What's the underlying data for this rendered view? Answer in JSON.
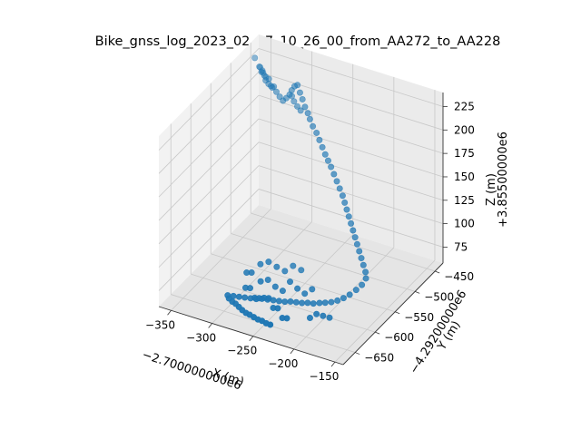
{
  "chart_data": {
    "type": "scatter",
    "projection": "3d",
    "title": "Bike_gnss_log_2023_02_07_10_26_00_from_AA272_to_AA228",
    "xlabel": "X (m)",
    "ylabel": "Y (m)",
    "zlabel": "Z (m)",
    "x_offset_label": "−2.700000000e6",
    "y_offset_label": "−4.29200000e6",
    "z_offset_label": "+3.85500000e6",
    "x_ticks": [
      "−350",
      "−300",
      "−250",
      "−200",
      "−150"
    ],
    "y_ticks": [
      "−650",
      "−600",
      "−550",
      "−500",
      "−450"
    ],
    "z_ticks": [
      "75",
      "100",
      "125",
      "150",
      "175",
      "200",
      "225"
    ],
    "xlim": [
      -365,
      -140
    ],
    "ylim": [
      -680,
      -430
    ],
    "zlim": [
      58,
      240
    ],
    "grid": true,
    "marker_color": "#1f77b4",
    "points": [
      {
        "x": -360,
        "y": -450,
        "z": 225
      },
      {
        "x": -352,
        "y": -455,
        "z": 220
      },
      {
        "x": -347,
        "y": -460,
        "z": 218
      },
      {
        "x": -344,
        "y": -464,
        "z": 222
      },
      {
        "x": -340,
        "y": -467,
        "z": 219
      },
      {
        "x": -337,
        "y": -470,
        "z": 216
      },
      {
        "x": -332,
        "y": -473,
        "z": 215
      },
      {
        "x": -326,
        "y": -476,
        "z": 214
      },
      {
        "x": -320,
        "y": -478,
        "z": 212
      },
      {
        "x": -315,
        "y": -480,
        "z": 209
      },
      {
        "x": -310,
        "y": -482,
        "z": 207
      },
      {
        "x": -305,
        "y": -484,
        "z": 212
      },
      {
        "x": -300,
        "y": -486,
        "z": 218
      },
      {
        "x": -296,
        "y": -489,
        "z": 225
      },
      {
        "x": -291,
        "y": -492,
        "z": 232
      },
      {
        "x": -286,
        "y": -495,
        "z": 236
      },
      {
        "x": -281,
        "y": -499,
        "z": 231
      },
      {
        "x": -276,
        "y": -503,
        "z": 227
      },
      {
        "x": -271,
        "y": -507,
        "z": 222
      },
      {
        "x": -266,
        "y": -510,
        "z": 218
      },
      {
        "x": -262,
        "y": -513,
        "z": 214
      },
      {
        "x": -257,
        "y": -516,
        "z": 209
      },
      {
        "x": -251,
        "y": -519,
        "z": 205
      },
      {
        "x": -246,
        "y": -522,
        "z": 200
      },
      {
        "x": -241,
        "y": -525,
        "z": 195
      },
      {
        "x": -236,
        "y": -528,
        "z": 190
      },
      {
        "x": -231,
        "y": -531,
        "z": 186
      },
      {
        "x": -226,
        "y": -534,
        "z": 182
      },
      {
        "x": -221,
        "y": -537,
        "z": 177
      },
      {
        "x": -216,
        "y": -540,
        "z": 172
      },
      {
        "x": -211,
        "y": -543,
        "z": 167
      },
      {
        "x": -206,
        "y": -546,
        "z": 162
      },
      {
        "x": -202,
        "y": -549,
        "z": 157
      },
      {
        "x": -198,
        "y": -552,
        "z": 152
      },
      {
        "x": -194,
        "y": -555,
        "z": 147
      },
      {
        "x": -190,
        "y": -558,
        "z": 142
      },
      {
        "x": -186,
        "y": -561,
        "z": 137
      },
      {
        "x": -182,
        "y": -564,
        "z": 132
      },
      {
        "x": -178,
        "y": -567,
        "z": 127
      },
      {
        "x": -174,
        "y": -570,
        "z": 122
      },
      {
        "x": -170,
        "y": -573,
        "z": 117
      },
      {
        "x": -166,
        "y": -576,
        "z": 112
      },
      {
        "x": -162,
        "y": -579,
        "z": 107
      },
      {
        "x": -160,
        "y": -582,
        "z": 102
      },
      {
        "x": -163,
        "y": -586,
        "z": 96
      },
      {
        "x": -168,
        "y": -590,
        "z": 91
      },
      {
        "x": -174,
        "y": -594,
        "z": 86
      },
      {
        "x": -180,
        "y": -597,
        "z": 82
      },
      {
        "x": -186,
        "y": -600,
        "z": 79
      },
      {
        "x": -192,
        "y": -603,
        "z": 77
      },
      {
        "x": -198,
        "y": -606,
        "z": 76
      },
      {
        "x": -204,
        "y": -608,
        "z": 75
      },
      {
        "x": -210,
        "y": -611,
        "z": 74
      },
      {
        "x": -216,
        "y": -613,
        "z": 74
      },
      {
        "x": -222,
        "y": -615,
        "z": 73
      },
      {
        "x": -228,
        "y": -617,
        "z": 73
      },
      {
        "x": -234,
        "y": -619,
        "z": 73
      },
      {
        "x": -240,
        "y": -621,
        "z": 72
      },
      {
        "x": -246,
        "y": -623,
        "z": 72
      },
      {
        "x": -252,
        "y": -625,
        "z": 72
      },
      {
        "x": -258,
        "y": -627,
        "z": 72
      },
      {
        "x": -264,
        "y": -629,
        "z": 72
      },
      {
        "x": -270,
        "y": -631,
        "z": 71
      },
      {
        "x": -276,
        "y": -633,
        "z": 71
      },
      {
        "x": -282,
        "y": -635,
        "z": 71
      },
      {
        "x": -288,
        "y": -637,
        "z": 71
      },
      {
        "x": -294,
        "y": -639,
        "z": 71
      },
      {
        "x": -300,
        "y": -641,
        "z": 71
      },
      {
        "x": -296,
        "y": -646,
        "z": 71
      },
      {
        "x": -290,
        "y": -650,
        "z": 71
      },
      {
        "x": -284,
        "y": -654,
        "z": 72
      },
      {
        "x": -278,
        "y": -658,
        "z": 72
      },
      {
        "x": -272,
        "y": -662,
        "z": 72
      },
      {
        "x": -266,
        "y": -665,
        "z": 72
      },
      {
        "x": -260,
        "y": -668,
        "z": 73
      },
      {
        "x": -254,
        "y": -670,
        "z": 73
      },
      {
        "x": -248,
        "y": -672,
        "z": 73
      },
      {
        "x": -242,
        "y": -674,
        "z": 74
      },
      {
        "x": -236,
        "y": -676,
        "z": 74
      },
      {
        "x": -230,
        "y": -678,
        "z": 75
      },
      {
        "x": -270,
        "y": -620,
        "z": 85
      },
      {
        "x": -262,
        "y": -618,
        "z": 88
      },
      {
        "x": -254,
        "y": -616,
        "z": 82
      },
      {
        "x": -246,
        "y": -614,
        "z": 79
      },
      {
        "x": -238,
        "y": -612,
        "z": 90
      },
      {
        "x": -230,
        "y": -610,
        "z": 84
      },
      {
        "x": -222,
        "y": -608,
        "z": 80
      },
      {
        "x": -214,
        "y": -606,
        "z": 86
      },
      {
        "x": -256,
        "y": -640,
        "z": 80
      },
      {
        "x": -248,
        "y": -645,
        "z": 84
      },
      {
        "x": -240,
        "y": -650,
        "z": 78
      },
      {
        "x": -232,
        "y": -655,
        "z": 82
      },
      {
        "x": -224,
        "y": -660,
        "z": 76
      },
      {
        "x": -216,
        "y": -665,
        "z": 80
      },
      {
        "x": -280,
        "y": -600,
        "z": 92
      },
      {
        "x": -272,
        "y": -596,
        "z": 95
      },
      {
        "x": -264,
        "y": -592,
        "z": 90
      },
      {
        "x": -256,
        "y": -588,
        "z": 86
      },
      {
        "x": -248,
        "y": -584,
        "z": 92
      },
      {
        "x": -240,
        "y": -580,
        "z": 88
      },
      {
        "x": -286,
        "y": -625,
        "z": 76
      },
      {
        "x": -278,
        "y": -630,
        "z": 80
      },
      {
        "x": -270,
        "y": -635,
        "z": 74
      },
      {
        "x": -262,
        "y": -640,
        "z": 78
      },
      {
        "x": -292,
        "y": -610,
        "z": 84
      },
      {
        "x": -284,
        "y": -614,
        "z": 88
      },
      {
        "x": -200,
        "y": -640,
        "z": 74
      },
      {
        "x": -194,
        "y": -636,
        "z": 78
      },
      {
        "x": -188,
        "y": -632,
        "z": 76
      },
      {
        "x": -182,
        "y": -628,
        "z": 74
      },
      {
        "x": -305,
        "y": -470,
        "z": 208
      },
      {
        "x": -300,
        "y": -475,
        "z": 206
      },
      {
        "x": -294,
        "y": -479,
        "z": 204
      },
      {
        "x": -288,
        "y": -483,
        "z": 203
      },
      {
        "x": -356,
        "y": -445,
        "z": 214
      },
      {
        "x": -350,
        "y": -450,
        "z": 212
      },
      {
        "x": -344,
        "y": -455,
        "z": 211
      },
      {
        "x": -338,
        "y": -460,
        "z": 213
      },
      {
        "x": -333,
        "y": -465,
        "z": 209
      },
      {
        "x": -328,
        "y": -468,
        "z": 211
      }
    ]
  }
}
